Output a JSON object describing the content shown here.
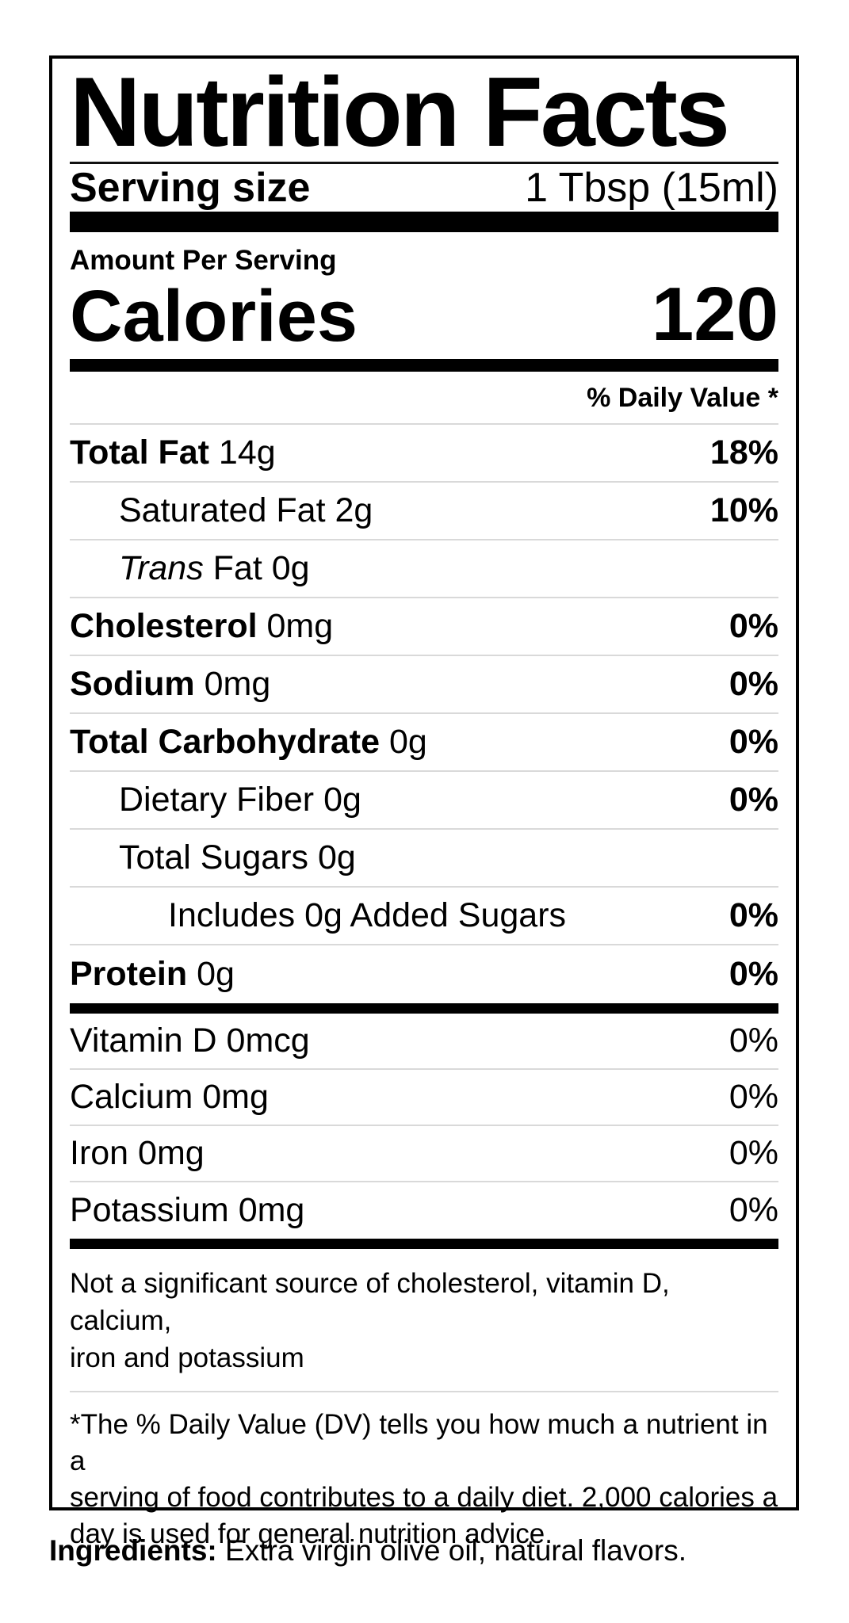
{
  "label": {
    "title": "Nutrition Facts",
    "serving": {
      "label": "Serving size",
      "value": "1 Tbsp (15ml)"
    },
    "amount_per_serving": "Amount Per Serving",
    "calories": {
      "label": "Calories",
      "value": "120"
    },
    "daily_value_header": "% Daily Value *",
    "nutrients": [
      {
        "indent": 0,
        "parts": [
          {
            "t": "Total Fat",
            "b": true
          },
          {
            "t": " 14g"
          }
        ],
        "dv": "18%",
        "dv_bold": true
      },
      {
        "indent": 1,
        "parts": [
          {
            "t": "Saturated Fat 2g"
          }
        ],
        "dv": "10%",
        "dv_bold": true
      },
      {
        "indent": 1,
        "parts": [
          {
            "t": "Trans",
            "i": true
          },
          {
            "t": " Fat 0g"
          }
        ],
        "dv": "",
        "dv_bold": true
      },
      {
        "indent": 0,
        "parts": [
          {
            "t": "Cholesterol",
            "b": true
          },
          {
            "t": " 0mg"
          }
        ],
        "dv": "0%",
        "dv_bold": true
      },
      {
        "indent": 0,
        "parts": [
          {
            "t": "Sodium",
            "b": true
          },
          {
            "t": " 0mg"
          }
        ],
        "dv": "0%",
        "dv_bold": true
      },
      {
        "indent": 0,
        "parts": [
          {
            "t": "Total Carbohydrate",
            "b": true
          },
          {
            "t": " 0g"
          }
        ],
        "dv": "0%",
        "dv_bold": true
      },
      {
        "indent": 1,
        "parts": [
          {
            "t": "Dietary Fiber 0g"
          }
        ],
        "dv": "0%",
        "dv_bold": true
      },
      {
        "indent": 1,
        "parts": [
          {
            "t": "Total Sugars 0g"
          }
        ],
        "dv": "",
        "dv_bold": true
      },
      {
        "indent": 2,
        "parts": [
          {
            "t": "Includes 0g Added Sugars"
          }
        ],
        "dv": "0%",
        "dv_bold": true
      },
      {
        "indent": 0,
        "parts": [
          {
            "t": "Protein",
            "b": true
          },
          {
            "t": " 0g"
          }
        ],
        "dv": "0%",
        "dv_bold": true
      }
    ],
    "vitamins": [
      {
        "parts": [
          {
            "t": "Vitamin D 0mcg"
          }
        ],
        "dv": "0%",
        "dv_bold": false
      },
      {
        "parts": [
          {
            "t": "Calcium 0mg"
          }
        ],
        "dv": "0%",
        "dv_bold": false
      },
      {
        "parts": [
          {
            "t": "Iron 0mg"
          }
        ],
        "dv": "0%",
        "dv_bold": false
      },
      {
        "parts": [
          {
            "t": "Potassium 0mg"
          }
        ],
        "dv": "0%",
        "dv_bold": false
      }
    ],
    "not_significant_note": "Not a significant source of cholesterol, vitamin D, calcium,\niron and potassium",
    "daily_value_note": "*The % Daily Value (DV) tells you how much a nutrient in a\nserving of food contributes to a daily diet. 2,000 calories a\nday is used for general nutrition advice."
  },
  "ingredients": {
    "label": "Ingredients:",
    "text": " Extra virgin olive oil, natural flavors."
  },
  "colors": {
    "text": "#000000",
    "separator": "#d9d9d9",
    "bar": "#000000",
    "background": "#ffffff"
  }
}
